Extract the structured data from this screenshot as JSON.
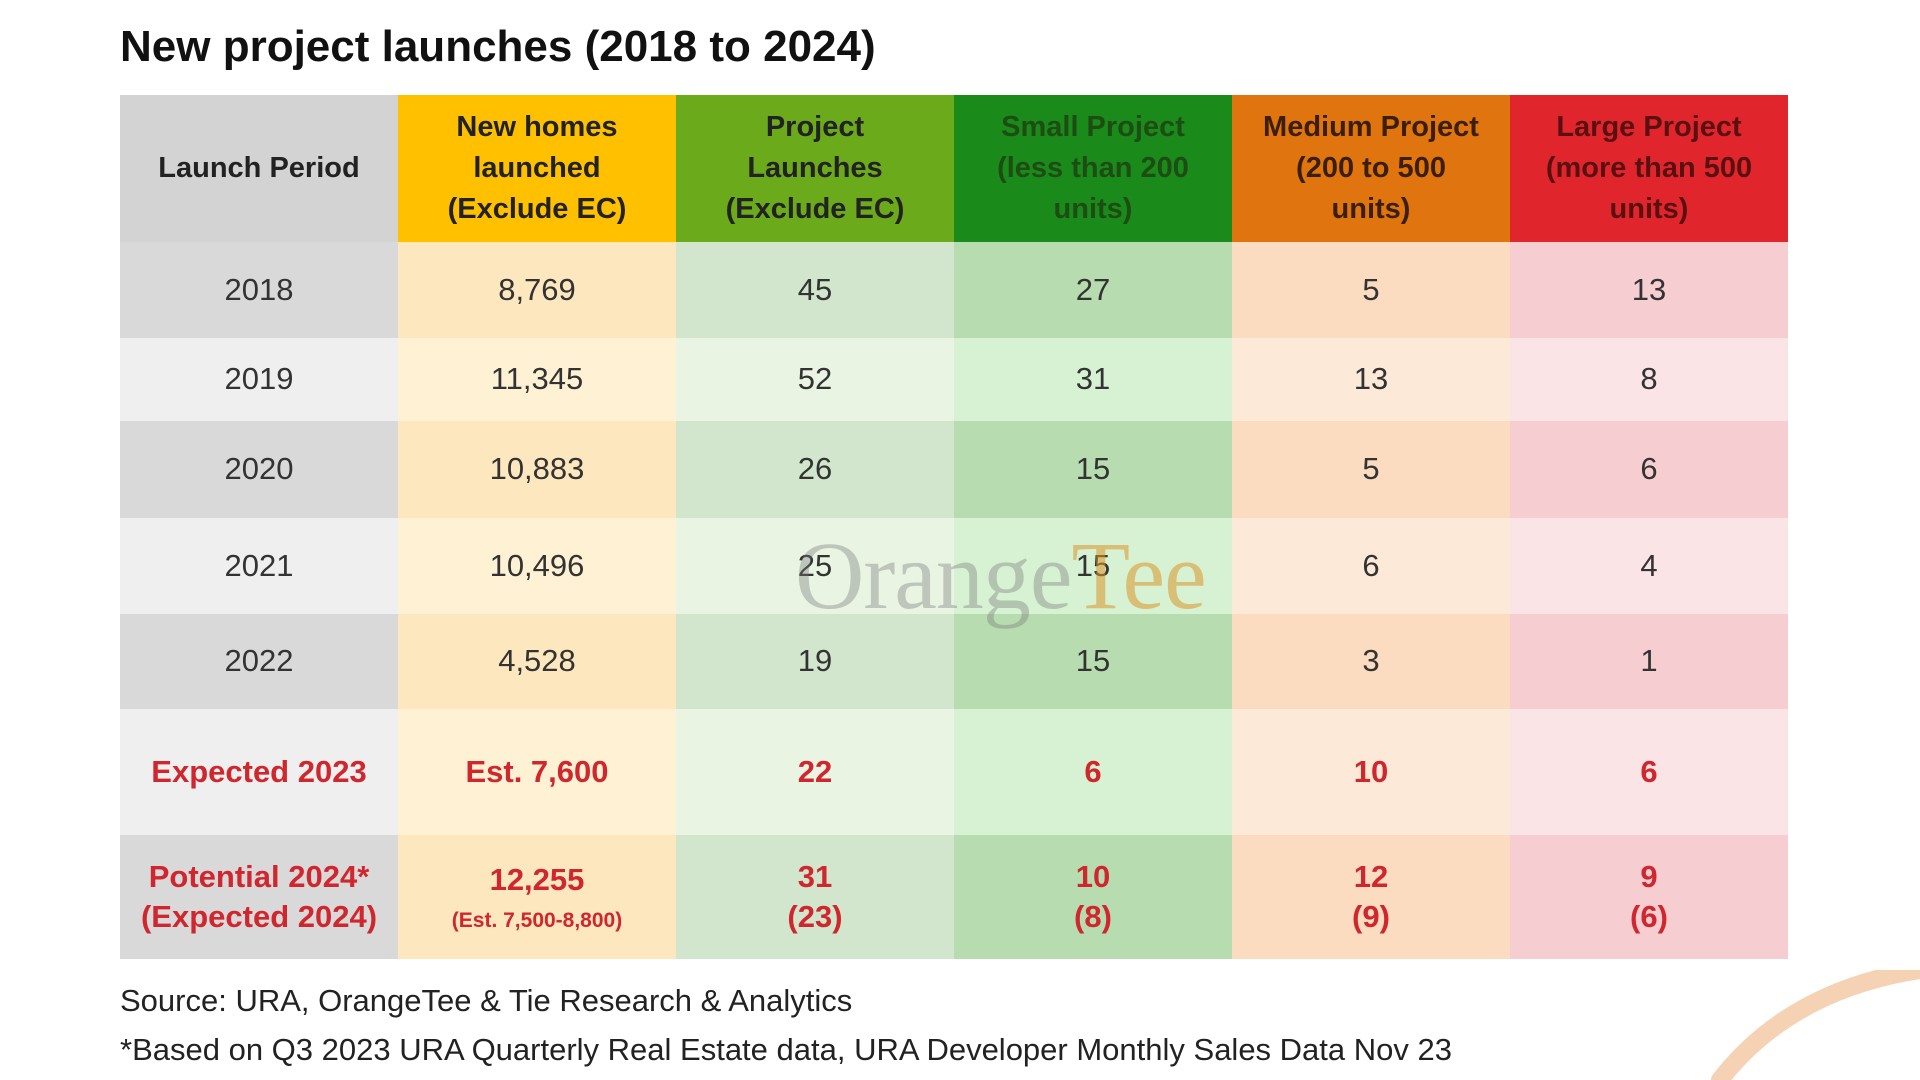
{
  "title": "New project launches (2018 to 2024)",
  "colors": {
    "col0_header": "#d3d3d3",
    "col0_dark": "#d9d9d9",
    "col0_light": "#efefef",
    "col1_header": "#ffc000",
    "col1_dark": "#fde7be",
    "col1_light": "#fff1d3",
    "col2_header": "#6aaa1b",
    "col2_dark": "#d1e6cc",
    "col2_light": "#e9f4e3",
    "col3_header": "#1a8a1a",
    "col3_dark": "#b7dcb0",
    "col3_light": "#d6f2d2",
    "col4_header": "#e0740f",
    "col4_dark": "#fbdcc0",
    "col4_light": "#fde9d7",
    "col5_header": "#e0262c",
    "col5_dark": "#f6cdd0",
    "col5_light": "#fbe4e5",
    "highlight_text": "#d0262d"
  },
  "chart_data": {
    "type": "table",
    "title": "New project launches (2018 to 2024)",
    "columns": [
      [
        "Launch Period"
      ],
      [
        "New homes",
        "launched",
        "(Exclude EC)"
      ],
      [
        "Project",
        "Launches",
        "(Exclude EC)"
      ],
      [
        "Small Project",
        "(less than 200",
        "units)"
      ],
      [
        "Medium Project",
        "(200 to 500",
        "units)"
      ],
      [
        "Large Project",
        "(more than 500",
        "units)"
      ]
    ],
    "rows": [
      {
        "period": [
          "2018"
        ],
        "new_homes": [
          "8,769"
        ],
        "launches": [
          "45"
        ],
        "small": [
          "27"
        ],
        "medium": [
          "5"
        ],
        "large": [
          "13"
        ]
      },
      {
        "period": [
          "2019"
        ],
        "new_homes": [
          "11,345"
        ],
        "launches": [
          "52"
        ],
        "small": [
          "31"
        ],
        "medium": [
          "13"
        ],
        "large": [
          "8"
        ]
      },
      {
        "period": [
          "2020"
        ],
        "new_homes": [
          "10,883"
        ],
        "launches": [
          "26"
        ],
        "small": [
          "15"
        ],
        "medium": [
          "5"
        ],
        "large": [
          "6"
        ]
      },
      {
        "period": [
          "2021"
        ],
        "new_homes": [
          "10,496"
        ],
        "launches": [
          "25"
        ],
        "small": [
          "15"
        ],
        "medium": [
          "6"
        ],
        "large": [
          "4"
        ]
      },
      {
        "period": [
          "2022"
        ],
        "new_homes": [
          "4,528"
        ],
        "launches": [
          "19"
        ],
        "small": [
          "15"
        ],
        "medium": [
          "3"
        ],
        "large": [
          "1"
        ]
      },
      {
        "period": [
          "Expected 2023"
        ],
        "new_homes": [
          "Est. 7,600"
        ],
        "launches": [
          "22"
        ],
        "small": [
          "6"
        ],
        "medium": [
          "10"
        ],
        "large": [
          "6"
        ],
        "highlight": true
      },
      {
        "period": [
          "Potential 2024*",
          "(Expected 2024)"
        ],
        "new_homes": [
          "12,255"
        ],
        "new_homes_note": "(Est. 7,500-8,800)",
        "launches": [
          "31",
          "(23)"
        ],
        "small": [
          "10",
          "(8)"
        ],
        "medium": [
          "12",
          "(9)"
        ],
        "large": [
          "9",
          "(6)"
        ],
        "highlight": true
      }
    ]
  },
  "watermark": {
    "part1": "Orange",
    "part2": "Tee"
  },
  "footer": {
    "source": "Source: URA, OrangeTee & Tie Research & Analytics",
    "note": "*Based on Q3 2023 URA Quarterly Real Estate data, URA Developer Monthly Sales Data Nov 23"
  }
}
